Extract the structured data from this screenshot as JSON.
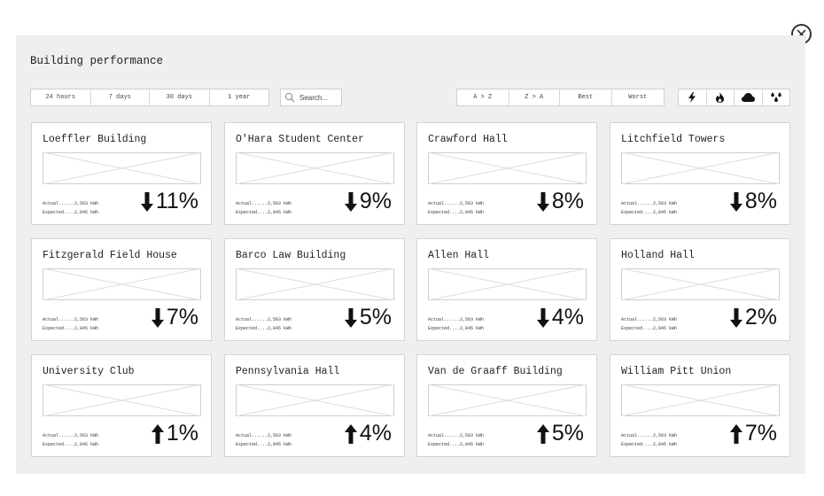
{
  "title": "Building performance",
  "close_label": "Close",
  "time_ranges": [
    {
      "label": "24 hours",
      "active": true
    },
    {
      "label": "7 days",
      "active": false
    },
    {
      "label": "30 days",
      "active": false
    },
    {
      "label": "1 year",
      "active": false
    }
  ],
  "search": {
    "placeholder": "Search..."
  },
  "sort_options": [
    {
      "label": "A > Z",
      "active": false
    },
    {
      "label": "Z > A",
      "active": false
    },
    {
      "label": "Best",
      "active": true
    },
    {
      "label": "Worst",
      "active": false
    }
  ],
  "utility_filters": [
    {
      "icon": "lightning-icon"
    },
    {
      "icon": "flame-icon"
    },
    {
      "icon": "cloud-icon"
    },
    {
      "icon": "water-drops-icon"
    }
  ],
  "colors": {
    "panel": "#efefef",
    "card_border": "#d4d4d4",
    "text": "#222222"
  },
  "buildings": [
    {
      "name": "Loeffler Building",
      "actual": "Actual......2,563 kWh",
      "expected": "Expected....2,845 kWh",
      "direction": "down",
      "percent": "11%"
    },
    {
      "name": "O'Hara Student Center",
      "actual": "Actual......2,563 kWh",
      "expected": "Expected....2,845 kWh",
      "direction": "down",
      "percent": "9%"
    },
    {
      "name": "Crawford Hall",
      "actual": "Actual......2,563 kWh",
      "expected": "Expected....2,845 kWh",
      "direction": "down",
      "percent": "8%"
    },
    {
      "name": "Litchfield Towers",
      "actual": "Actual......2,563 kWh",
      "expected": "Expected....2,845 kWh",
      "direction": "down",
      "percent": "8%"
    },
    {
      "name": "Fitzgerald Field House",
      "actual": "Actual......2,563 kWh",
      "expected": "Expected....2,845 kWh",
      "direction": "down",
      "percent": "7%"
    },
    {
      "name": "Barco Law Building",
      "actual": "Actual......2,563 kWh",
      "expected": "Expected....2,845 kWh",
      "direction": "down",
      "percent": "5%"
    },
    {
      "name": "Allen Hall",
      "actual": "Actual......2,563 kWh",
      "expected": "Expected....2,845 kWh",
      "direction": "down",
      "percent": "4%"
    },
    {
      "name": "Holland Hall",
      "actual": "Actual......2,563 kWh",
      "expected": "Expected....2,845 kWh",
      "direction": "down",
      "percent": "2%"
    },
    {
      "name": "University Club",
      "actual": "Actual......2,563 kWh",
      "expected": "Expected....2,845 kWh",
      "direction": "up",
      "percent": "1%"
    },
    {
      "name": "Pennsylvania Hall",
      "actual": "Actual......2,563 kWh",
      "expected": "Expected....2,845 kWh",
      "direction": "up",
      "percent": "4%"
    },
    {
      "name": "Van de Graaff Building",
      "actual": "Actual......2,563 kWh",
      "expected": "Expected....2,845 kWh",
      "direction": "up",
      "percent": "5%"
    },
    {
      "name": "William Pitt Union",
      "actual": "Actual......2,563 kWh",
      "expected": "Expected....2,845 kWh",
      "direction": "up",
      "percent": "7%"
    }
  ]
}
